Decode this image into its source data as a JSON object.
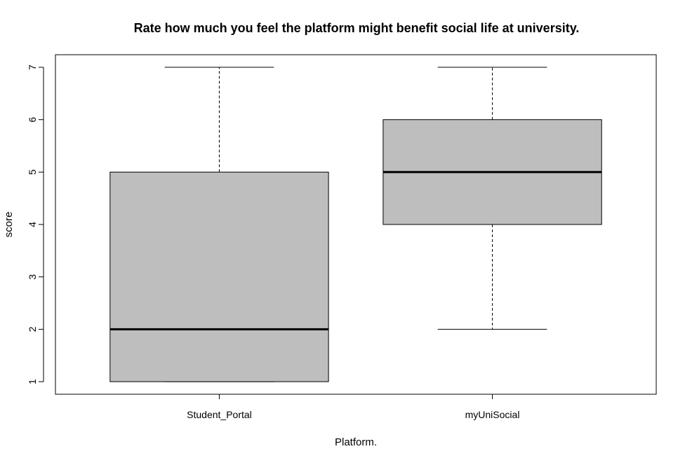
{
  "chart_data": {
    "type": "boxplot",
    "title": "Rate how much you feel the platform might benefit social life at university.",
    "xlabel": "Platform.",
    "ylabel": "score",
    "ylim": [
      0.76,
      7.24
    ],
    "yticks": [
      1,
      2,
      3,
      4,
      5,
      6,
      7
    ],
    "categories": [
      "Student_Portal",
      "myUniSocial"
    ],
    "boxes": [
      {
        "category": "Student_Portal",
        "min": 1,
        "q1": 1,
        "median": 2,
        "q3": 5,
        "max": 7
      },
      {
        "category": "myUniSocial",
        "min": 2,
        "q1": 4,
        "median": 5,
        "q3": 6,
        "max": 7
      }
    ],
    "box_fill": "#bebebe",
    "line_color": "#000000"
  }
}
